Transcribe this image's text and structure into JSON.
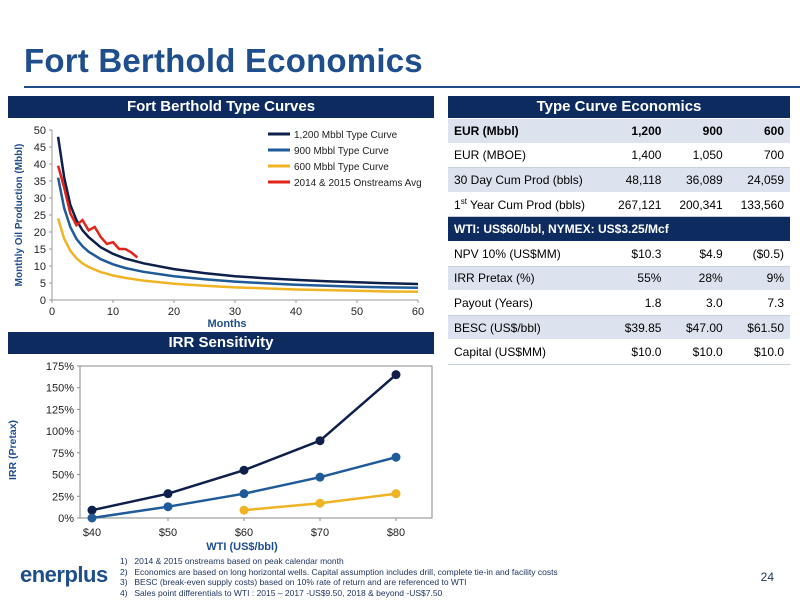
{
  "page": {
    "title": "Fort Berthold Economics",
    "page_number": "24",
    "logo_text": "enerplus",
    "footnotes": [
      {
        "num": "1)",
        "text": "2014 & 2015 onstreams based on peak calendar month"
      },
      {
        "num": "2)",
        "text": "Economics are based on long horizontal wells. Capital assumption includes drill, complete tie-in and facility costs"
      },
      {
        "num": "3)",
        "text": "BESC (break-even supply costs) based on 10% rate of return and are referenced to WTI"
      },
      {
        "num": "4)",
        "text": "Sales point differentials to WTI :  2015 – 2017  -US$9.50, 2018 & beyond -US$7.50"
      }
    ]
  },
  "colors": {
    "navy": "#0d2b5e",
    "title_blue": "#1f4e8c",
    "mid_blue": "#1f5a99",
    "gold": "#f0b323",
    "red": "#e2231a"
  },
  "econ_table": {
    "header": "Type Curve Economics",
    "rows": [
      {
        "label": "EUR (Mbbl)",
        "v1": "1,200",
        "v2": "900",
        "v3": "600"
      },
      {
        "label": "EUR (MBOE)",
        "v1": "1,400",
        "v2": "1,050",
        "v3": "700"
      },
      {
        "label": "30 Day Cum Prod (bbls)",
        "v1": "48,118",
        "v2": "36,089",
        "v3": "24,059"
      },
      {
        "label_pre": "1",
        "label_sup": "st",
        "label_post": " Year Cum Prod (bbls)",
        "v1": "267,121",
        "v2": "200,341",
        "v3": "133,560"
      },
      {
        "section": "WTI: US$60/bbl,  NYMEX: US$3.25/Mcf"
      },
      {
        "label": "NPV 10% (US$MM)",
        "v1": "$10.3",
        "v2": "$4.9",
        "v3": "($0.5)"
      },
      {
        "label": "IRR Pretax (%)",
        "v1": "55%",
        "v2": "28%",
        "v3": "9%"
      },
      {
        "label": "Payout (Years)",
        "v1": "1.8",
        "v2": "3.0",
        "v3": "7.3"
      },
      {
        "label": "BESC (US$/bbl)",
        "v1": "$39.85",
        "v2": "$47.00",
        "v3": "$61.50"
      },
      {
        "label": "Capital (US$MM)",
        "v1": "$10.0",
        "v2": "$10.0",
        "v3": "$10.0"
      }
    ]
  },
  "chart_data": [
    {
      "type": "line",
      "title": "Fort Berthold Type Curves",
      "xlabel": "Months",
      "ylabel": "Monthly Oil Production (Mbbl)",
      "xlim": [
        0,
        60
      ],
      "ylim": [
        0,
        50
      ],
      "x_ticks": [
        "0",
        "10",
        "20",
        "30",
        "40",
        "50",
        "60"
      ],
      "y_ticks": [
        "0",
        "5",
        "10",
        "15",
        "20",
        "25",
        "30",
        "35",
        "40",
        "45",
        "50"
      ],
      "legend_position": "top-right",
      "series": [
        {
          "name": "1,200 Mbbl Type Curve",
          "color": "#0d1f4a",
          "x": [
            1,
            2,
            3,
            4,
            5,
            6,
            8,
            10,
            12,
            15,
            20,
            25,
            30,
            35,
            40,
            45,
            50,
            55,
            60
          ],
          "y": [
            48,
            36,
            28,
            23.5,
            20.5,
            18.5,
            15.5,
            13.6,
            12.2,
            10.8,
            9.1,
            7.9,
            7.0,
            6.4,
            5.9,
            5.5,
            5.2,
            4.9,
            4.7
          ]
        },
        {
          "name": "900 Mbbl Type Curve",
          "color": "#1f5a99",
          "x": [
            1,
            2,
            3,
            4,
            5,
            6,
            8,
            10,
            12,
            15,
            20,
            25,
            30,
            35,
            40,
            45,
            50,
            55,
            60
          ],
          "y": [
            36,
            27,
            21.5,
            18,
            15.8,
            14.2,
            12,
            10.5,
            9.4,
            8.3,
            7,
            6.1,
            5.4,
            4.9,
            4.5,
            4.2,
            3.9,
            3.7,
            3.6
          ]
        },
        {
          "name": "600 Mbbl Type Curve",
          "color": "#f0b323",
          "x": [
            1,
            2,
            3,
            4,
            5,
            6,
            8,
            10,
            12,
            15,
            20,
            25,
            30,
            35,
            40,
            45,
            50,
            55,
            60
          ],
          "y": [
            24,
            18,
            14.5,
            12.3,
            10.8,
            9.7,
            8.2,
            7.2,
            6.5,
            5.7,
            4.8,
            4.2,
            3.7,
            3.4,
            3.1,
            2.9,
            2.7,
            2.5,
            2.4
          ]
        },
        {
          "name": "2014 & 2015 Onstreams Avg",
          "color": "#e2231a",
          "x": [
            1,
            2,
            3,
            4,
            5,
            6,
            7,
            8,
            9,
            10,
            11,
            12,
            13,
            14
          ],
          "y": [
            39.5,
            33,
            25.5,
            22,
            23.5,
            20.5,
            21.5,
            18.5,
            16.5,
            17,
            15,
            15,
            14,
            12.5
          ]
        }
      ]
    },
    {
      "type": "line",
      "title": "IRR Sensitivity",
      "xlabel": "WTI (US$/bbl)",
      "ylabel": "IRR (Pretax)",
      "categories": [
        "$40",
        "$50",
        "$60",
        "$70",
        "$80"
      ],
      "ylim": [
        0,
        175
      ],
      "y_ticks": [
        "0%",
        "25%",
        "50%",
        "75%",
        "100%",
        "125%",
        "150%",
        "175%"
      ],
      "series": [
        {
          "color": "#0d1f4a",
          "values": [
            9,
            28,
            55,
            89,
            165
          ]
        },
        {
          "color": "#1f5a99",
          "values": [
            0,
            13,
            28,
            47,
            70
          ]
        },
        {
          "color": "#f0b323",
          "values": [
            null,
            null,
            9,
            17,
            28
          ]
        }
      ]
    }
  ]
}
